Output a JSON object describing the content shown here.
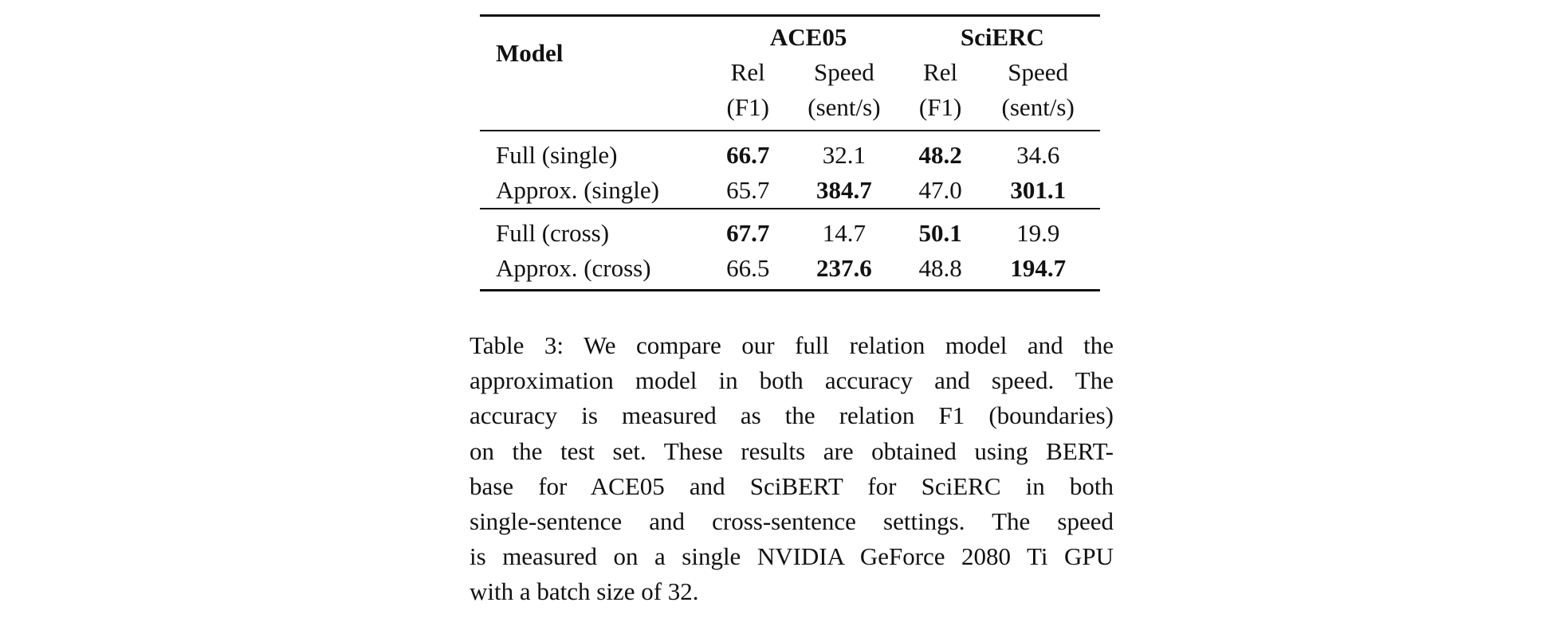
{
  "table": {
    "header": {
      "model_label": "Model",
      "groups": [
        {
          "name": "ACE05",
          "columns": [
            {
              "line1": "Rel",
              "line2": "(F1)"
            },
            {
              "line1": "Speed",
              "line2": "(sent/s)"
            }
          ]
        },
        {
          "name": "SciERC",
          "columns": [
            {
              "line1": "Rel",
              "line2": "(F1)"
            },
            {
              "line1": "Speed",
              "line2": "(sent/s)"
            }
          ]
        }
      ]
    },
    "sections": [
      {
        "rows": [
          {
            "model": "Full (single)",
            "ace05_rel": "66.7",
            "ace05_speed": "32.1",
            "scierc_rel": "48.2",
            "scierc_speed": "34.6"
          },
          {
            "model": "Approx. (single)",
            "ace05_rel": "65.7",
            "ace05_speed": "384.7",
            "scierc_rel": "47.0",
            "scierc_speed": "301.1"
          }
        ]
      },
      {
        "rows": [
          {
            "model": "Full (cross)",
            "ace05_rel": "67.7",
            "ace05_speed": "14.7",
            "scierc_rel": "50.1",
            "scierc_speed": "19.9"
          },
          {
            "model": "Approx. (cross)",
            "ace05_rel": "66.5",
            "ace05_speed": "237.6",
            "scierc_rel": "48.8",
            "scierc_speed": "194.7"
          }
        ]
      }
    ],
    "bold_cells": [
      "Full (single).ace05_rel",
      "Full (single).scierc_rel",
      "Approx. (single).ace05_speed",
      "Approx. (single).scierc_speed",
      "Full (cross).ace05_rel",
      "Full (cross).scierc_rel",
      "Approx. (cross).ace05_speed",
      "Approx. (cross).scierc_speed"
    ]
  },
  "caption": {
    "lines": [
      "Table 3: We compare our full relation model and the",
      "approximation model in both accuracy and speed. The",
      "accuracy is measured as the relation F1 (boundaries)",
      "on the test set. These results are obtained using BERT-",
      "base for ACE05 and SciBERT for SciERC in both",
      "single-sentence and cross-sentence settings. The speed",
      "is measured on a single NVIDIA GeForce 2080 Ti GPU",
      "with a batch size of 32."
    ]
  }
}
